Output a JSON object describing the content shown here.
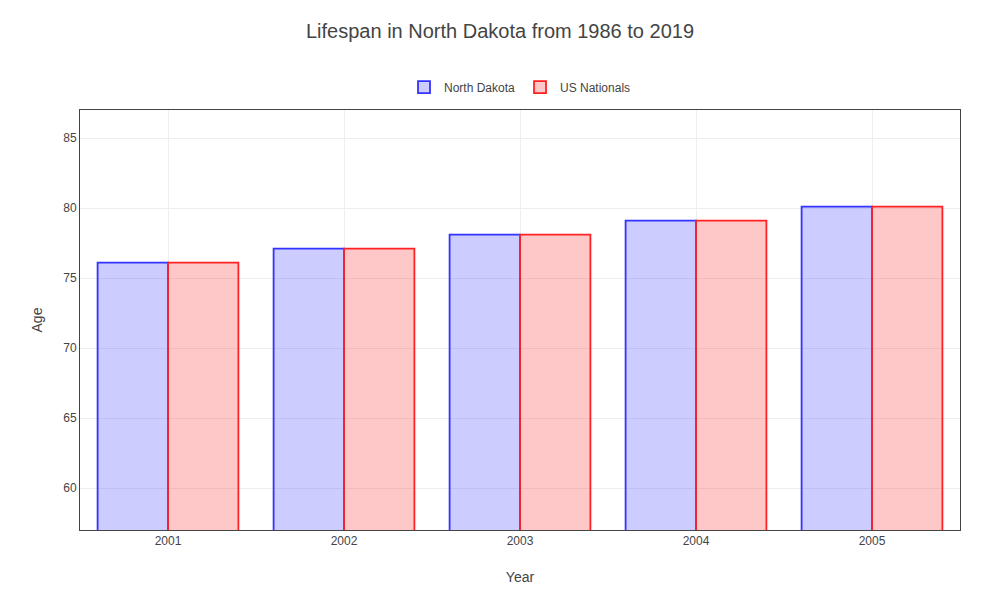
{
  "chart_data": {
    "type": "bar",
    "title": "Lifespan in North Dakota from 1986 to 2019",
    "xlabel": "Year",
    "ylabel": "Age",
    "categories": [
      "2001",
      "2002",
      "2003",
      "2004",
      "2005"
    ],
    "series": [
      {
        "name": "North Dakota",
        "color": "#3333ff",
        "values": [
          76.1,
          77.1,
          78.1,
          79.1,
          80.1
        ]
      },
      {
        "name": "US Nationals",
        "color": "#ff2222",
        "values": [
          76.1,
          77.1,
          78.1,
          79.1,
          80.1
        ]
      }
    ],
    "ylim": [
      57,
      87
    ],
    "yticks": [
      60,
      65,
      70,
      75,
      80,
      85
    ],
    "grid": true,
    "legend": "top"
  }
}
